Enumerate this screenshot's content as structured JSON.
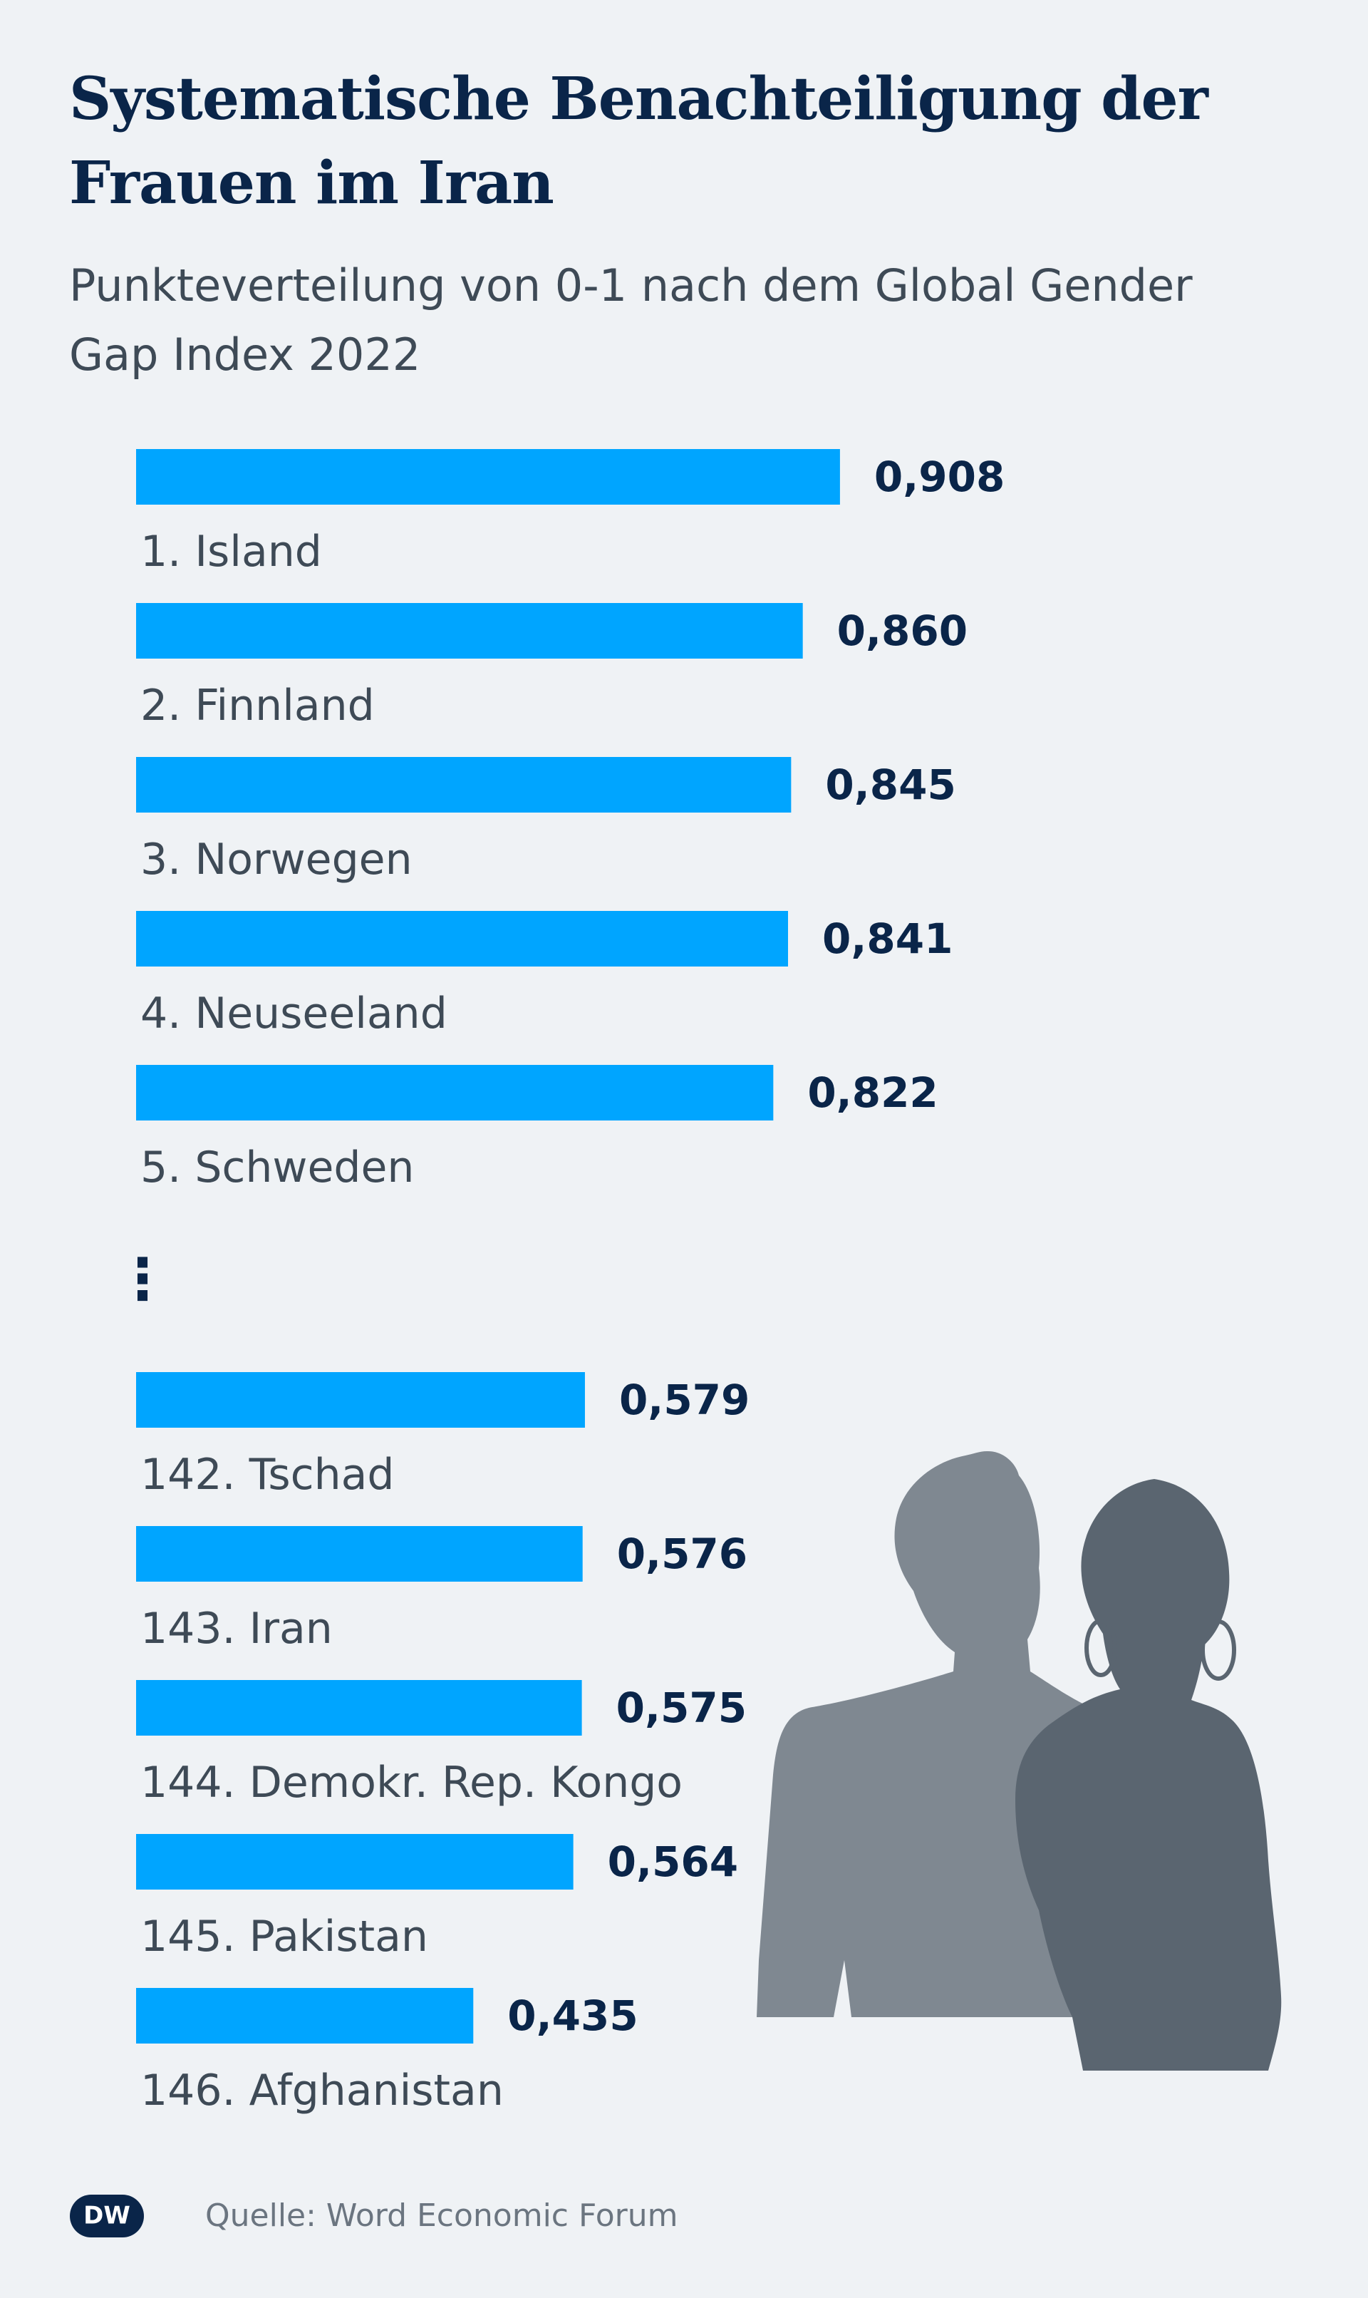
{
  "title": "Systematische Benachteiligung der Frauen im Iran",
  "subtitle": "Punkteverteilung von 0-1 nach dem Global Gender Gap Index 2022",
  "source": "Quelle: Word Economic Forum",
  "logo_text": "DW",
  "colors": {
    "bar": "#00a5ff",
    "title": "#0a2549",
    "text": "#3e4a56",
    "background": "#eff2f5"
  },
  "chart_data": {
    "type": "bar",
    "orientation": "horizontal",
    "categories": [
      "1. Island",
      "2. Finnland",
      "3. Norwegen",
      "4. Neuseeland",
      "5. Schweden",
      "142. Tschad",
      "143. Iran",
      "144. Demokr. Rep. Kongo",
      "145. Pakistan",
      "146. Afghanistan"
    ],
    "values": [
      0.908,
      0.86,
      0.845,
      0.841,
      0.822,
      0.579,
      0.576,
      0.575,
      0.564,
      0.435
    ],
    "value_labels": [
      "0,908",
      "0,860",
      "0,845",
      "0,841",
      "0,822",
      "0,579",
      "0,576",
      "0,575",
      "0,564",
      "0,435"
    ],
    "gap_marker": "⋮",
    "xlim": [
      0,
      1
    ],
    "grid": false
  }
}
